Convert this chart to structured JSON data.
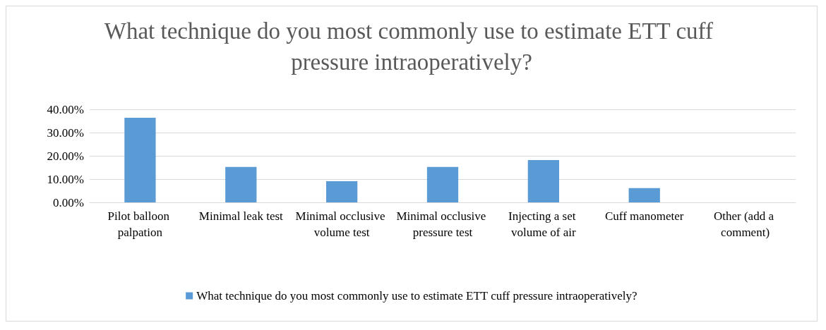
{
  "chart_data": {
    "type": "bar",
    "title": "What technique do you most commonly use to estimate ETT cuff pressure intraoperatively?",
    "categories": [
      "Pilot balloon palpation",
      "Minimal leak test",
      "Minimal occlusive volume test",
      "Minimal occlusive pressure test",
      "Injecting a set volume of air",
      "Cuff manometer",
      "Other (add a comment)"
    ],
    "series": [
      {
        "name": "What technique do you most commonly use to estimate ETT cuff pressure intraoperatively?",
        "color": "#5b9bd5",
        "values": [
          36.4,
          15.2,
          9.1,
          15.2,
          18.2,
          6.1,
          0
        ]
      }
    ],
    "ylim": [
      0,
      40
    ],
    "yticks": [
      {
        "value": 0,
        "label": "0.00%"
      },
      {
        "value": 10,
        "label": "10.00%"
      },
      {
        "value": 20,
        "label": "20.00%"
      },
      {
        "value": 30,
        "label": "30.00%"
      },
      {
        "value": 40,
        "label": "40.00%"
      }
    ],
    "grid": "y",
    "legend": "bottom"
  }
}
